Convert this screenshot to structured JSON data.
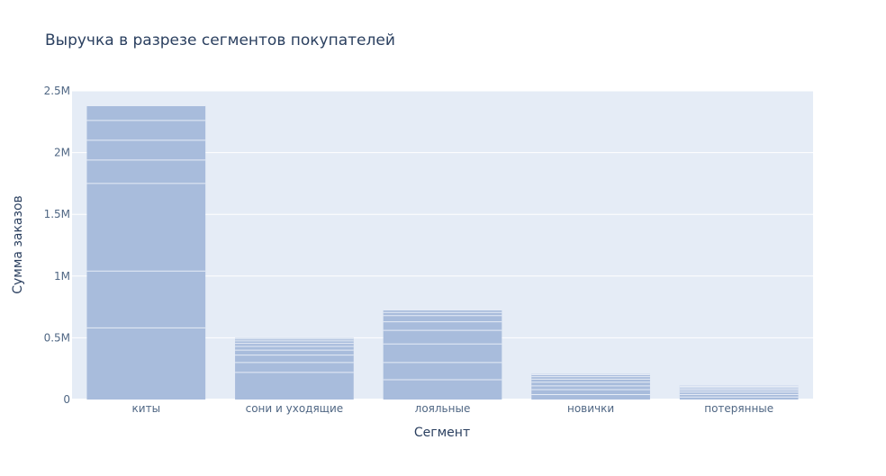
{
  "chart_data": {
    "type": "bar",
    "title": "Выручка в разрезе сегментов покупателей",
    "xlabel": "Сегмент",
    "ylabel": "Сумма заказов",
    "categories": [
      "киты",
      "сони и уходящие",
      "лояльные",
      "новички",
      "потерянные"
    ],
    "values": [
      2380000,
      500000,
      725000,
      210000,
      115000
    ],
    "stack_boundaries": [
      [
        580000,
        1040000,
        1750000,
        1940000,
        2100000,
        2260000
      ],
      [
        220000,
        300000,
        360000,
        400000,
        430000,
        455000,
        475000,
        490000
      ],
      [
        160000,
        300000,
        450000,
        560000,
        630000,
        680000,
        705000
      ],
      [
        40000,
        80000,
        110000,
        140000,
        165000,
        185000,
        200000
      ],
      [
        20000,
        40000,
        58000,
        73000,
        86000,
        97000,
        106000
      ]
    ],
    "yticks": [
      {
        "value": 0,
        "label": "0"
      },
      {
        "value": 500000,
        "label": "0.5M"
      },
      {
        "value": 1000000,
        "label": "1M"
      },
      {
        "value": 1500000,
        "label": "1.5M"
      },
      {
        "value": 2000000,
        "label": "2M"
      },
      {
        "value": 2500000,
        "label": "2.5M"
      }
    ],
    "ylim": [
      0,
      2500000
    ],
    "grid": true,
    "colors": {
      "bar": "#a8bcdc",
      "bar_line": "#e6ecf6",
      "plot_bg": "#e5ecf6",
      "grid": "#ffffff",
      "title": "#2a3f5f",
      "tick": "#506784"
    }
  }
}
